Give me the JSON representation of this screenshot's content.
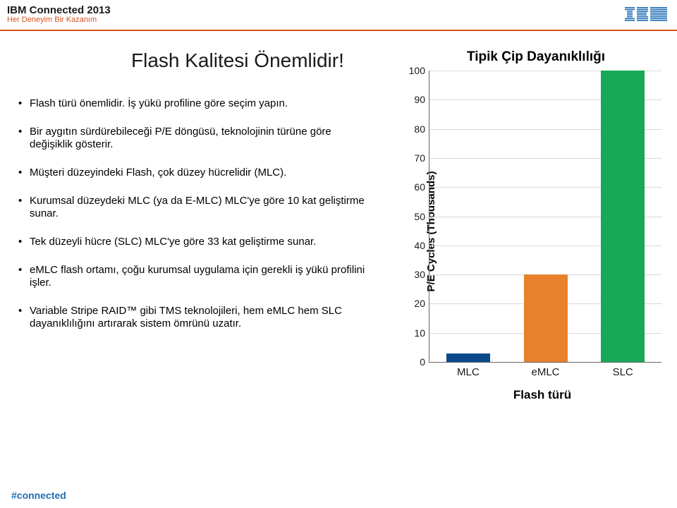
{
  "header": {
    "conference_title_prefix": "IBM ",
    "conference_title_bold": "Connected",
    "conference_year": " 2013",
    "subtitle": "Her Deneyim Bir Kazanım",
    "title_color": "#1a1a1a",
    "subtitle_color": "#d9531e",
    "border_color": "#d9531e",
    "logo_color": "#1f6db5"
  },
  "slide": {
    "title": "Flash Kalitesi Önemlidir!",
    "title_color": "#1a1a1a"
  },
  "bullets": [
    "Flash türü önemlidir. İş yükü profiline göre seçim yapın.",
    "Bir aygıtın sürdürebileceği P/E döngüsü, teknolojinin türüne göre değişiklik gösterir.",
    "Müşteri düzeyindeki Flash, çok düzey hücrelidir (MLC).",
    "Kurumsal düzeydeki MLC (ya da E-MLC) MLC'ye göre 10 kat geliştirme sunar.",
    "Tek düzeyli hücre (SLC) MLC'ye göre 33 kat geliştirme sunar.",
    "eMLC flash ortamı, çoğu kurumsal uygulama için gerekli iş yükü profilini işler.",
    "Variable Stripe RAID™ gibi TMS teknolojileri, hem eMLC hem SLC dayanıklılığını artırarak sistem ömrünü uzatır."
  ],
  "chart": {
    "type": "bar",
    "title": "Tipik Çip Dayanıklılığı",
    "y_label": "P/E Cycles (Thousands)",
    "x_label": "Flash türü",
    "ylim": [
      0,
      100
    ],
    "y_ticks": [
      0,
      10,
      20,
      30,
      40,
      50,
      60,
      70,
      80,
      90,
      100
    ],
    "categories": [
      "MLC",
      "eMLC",
      "SLC"
    ],
    "values": [
      3,
      30,
      100
    ],
    "bar_colors": [
      "#0b4a8a",
      "#e8812c",
      "#18a858"
    ],
    "grid_color": "#d9d9d9",
    "axis_color": "#666666",
    "text_color": "#1a1a1a"
  },
  "footer": {
    "hashtag": "#connected",
    "color": "#1f6db5"
  }
}
